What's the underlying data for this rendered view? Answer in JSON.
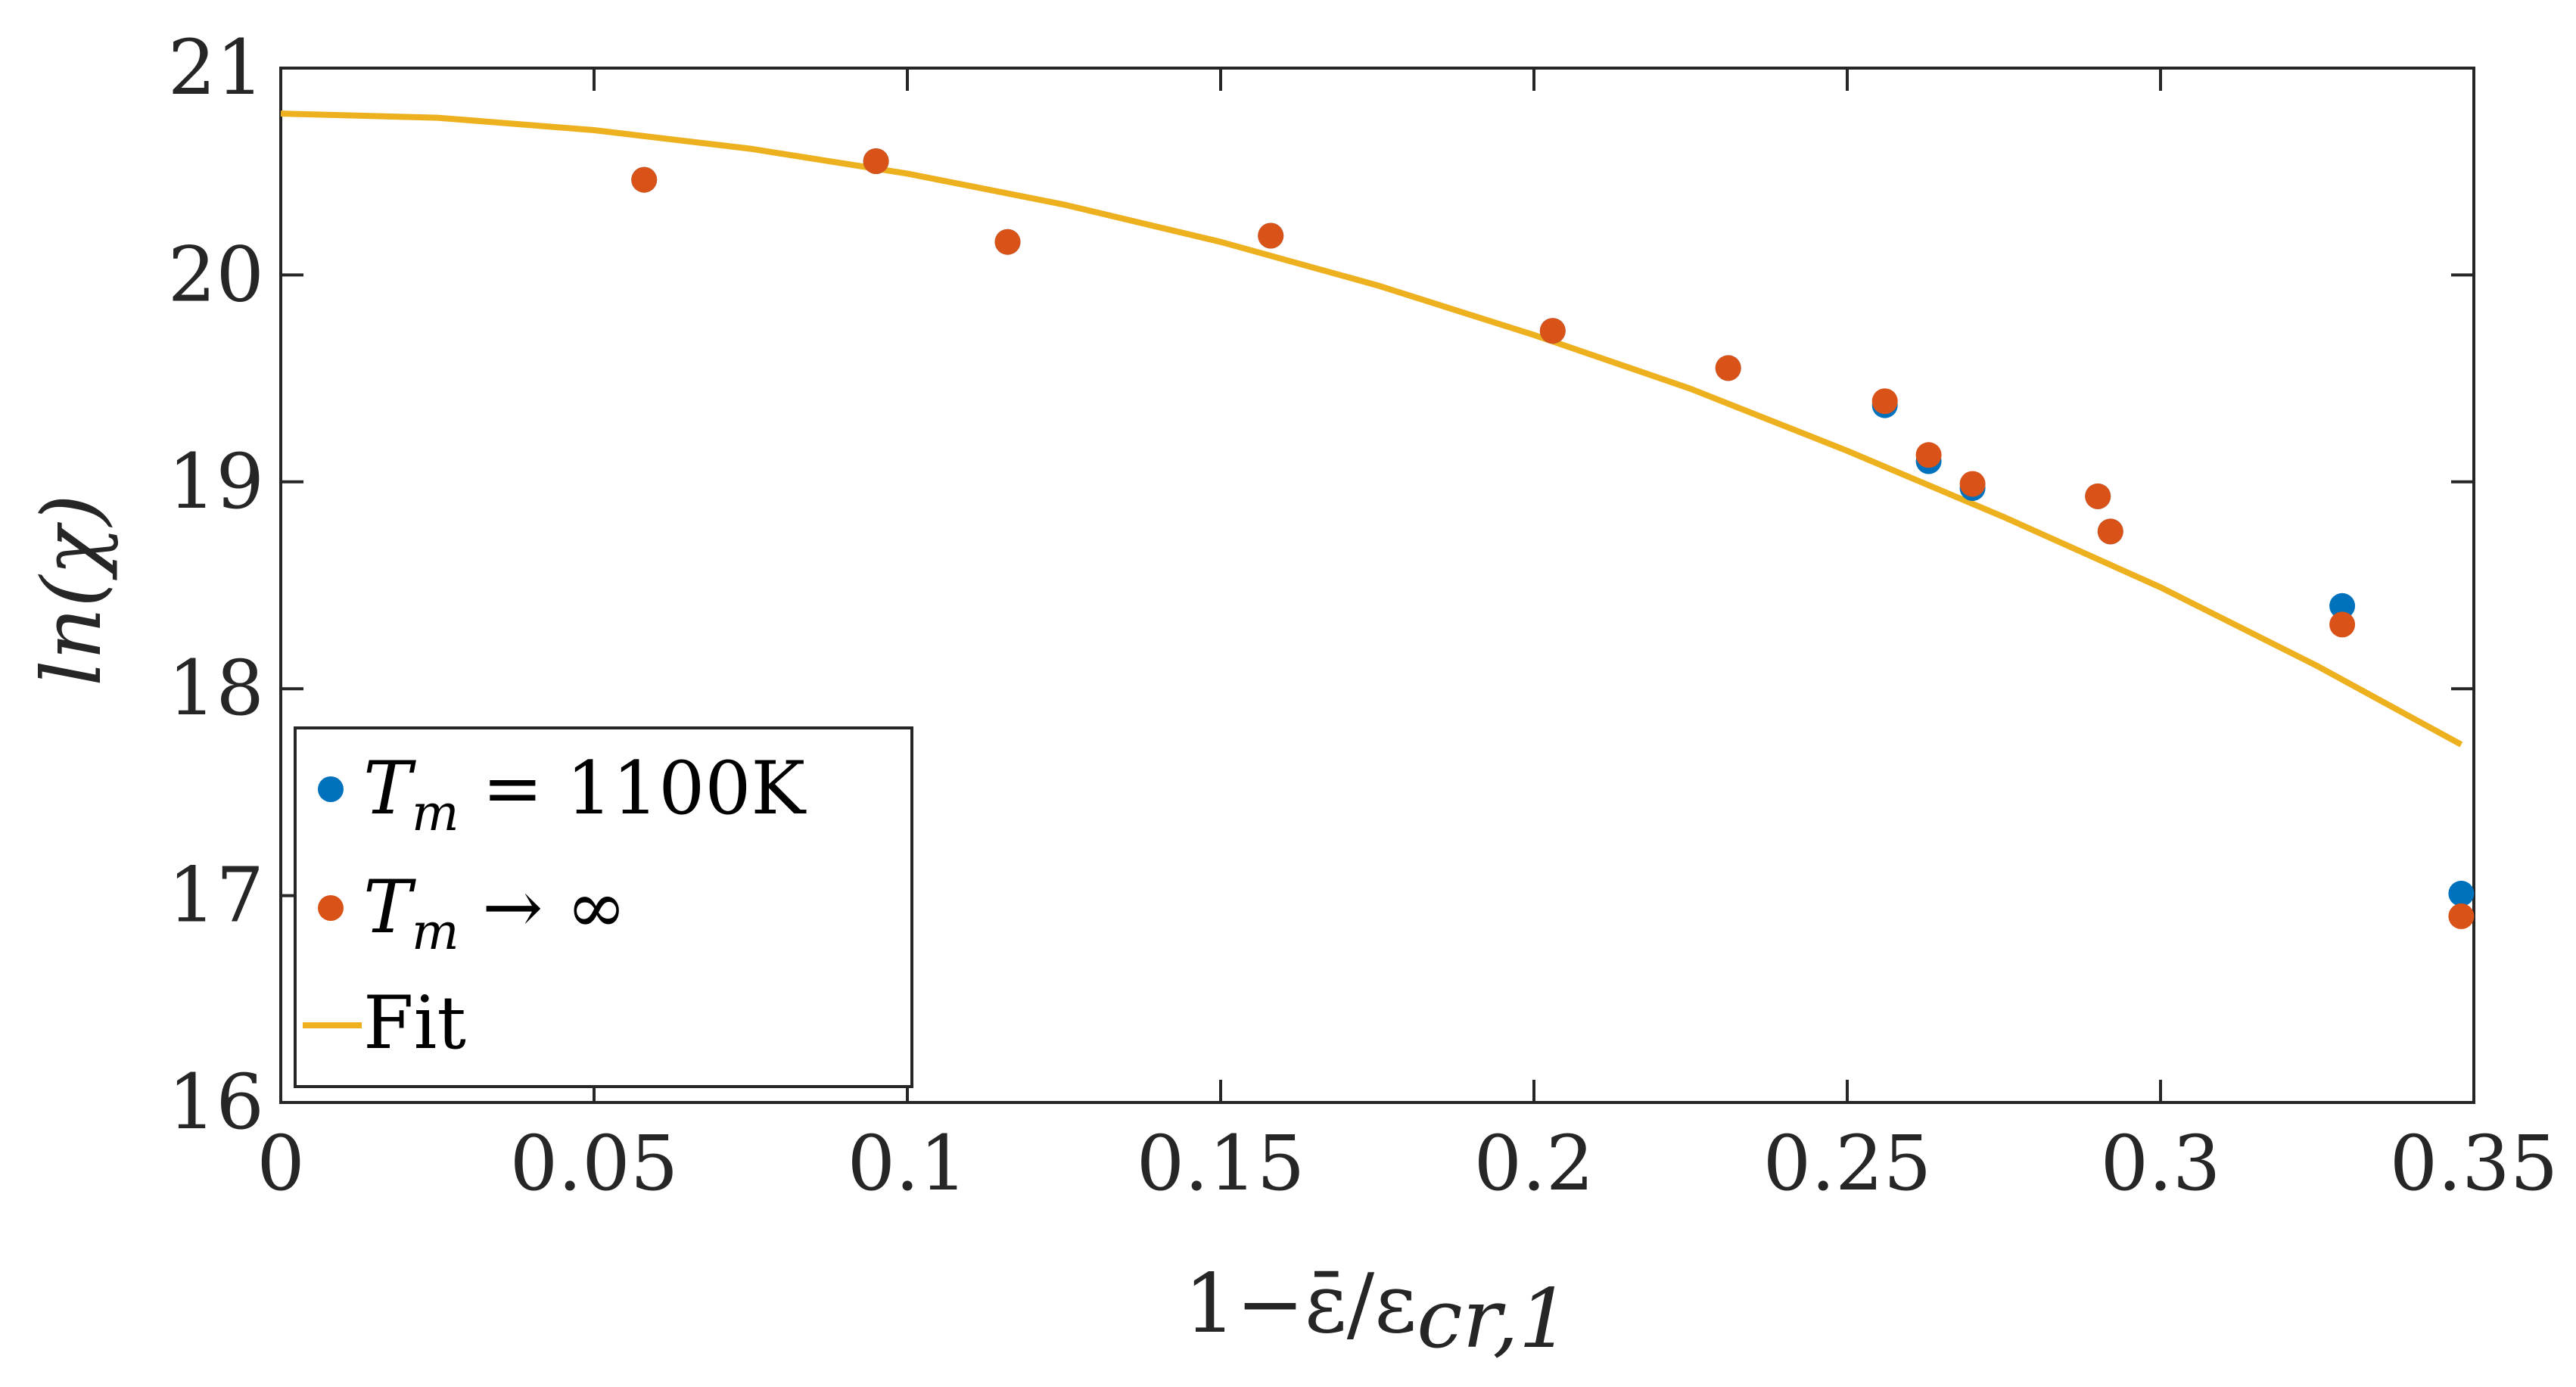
{
  "chart_data": {
    "type": "scatter",
    "title": "",
    "xlabel": "1−ε̄/εcr,1",
    "xlabel_parts": {
      "main": "1−ε̄/ε",
      "sub": "cr,1"
    },
    "ylabel": "ln(χ)",
    "xlim": [
      0,
      0.35
    ],
    "ylim": [
      16,
      21
    ],
    "xticks": [
      0,
      0.05,
      0.1,
      0.15,
      0.2,
      0.25,
      0.3,
      0.35
    ],
    "xtick_labels": [
      "0",
      "0.05",
      "0.1",
      "0.15",
      "0.2",
      "0.25",
      "0.3",
      "0.35"
    ],
    "yticks": [
      16,
      17,
      18,
      19,
      20,
      21
    ],
    "ytick_labels": [
      "16",
      "17",
      "18",
      "19",
      "20",
      "21"
    ],
    "grid": false,
    "legend_position": "bottom-left",
    "series": [
      {
        "name": "Tm = 1100K",
        "label_parts": {
          "main": "T",
          "sub": "m",
          "rest": " = 1100K"
        },
        "color": "#0072BD",
        "marker": "circle",
        "points": [
          [
            0.058,
            20.46
          ],
          [
            0.095,
            20.55
          ],
          [
            0.116,
            20.16
          ],
          [
            0.158,
            20.19
          ],
          [
            0.203,
            19.73
          ],
          [
            0.231,
            19.55
          ],
          [
            0.256,
            19.37
          ],
          [
            0.263,
            19.1
          ],
          [
            0.27,
            18.97
          ],
          [
            0.29,
            18.93
          ],
          [
            0.292,
            18.76
          ],
          [
            0.329,
            18.4
          ],
          [
            0.348,
            17.01
          ]
        ]
      },
      {
        "name": "Tm → ∞",
        "label_parts": {
          "main": "T",
          "sub": "m",
          "rest": " → ∞"
        },
        "color": "#D95319",
        "marker": "circle",
        "points": [
          [
            0.058,
            20.46
          ],
          [
            0.095,
            20.55
          ],
          [
            0.116,
            20.16
          ],
          [
            0.158,
            20.19
          ],
          [
            0.203,
            19.73
          ],
          [
            0.231,
            19.55
          ],
          [
            0.256,
            19.39
          ],
          [
            0.263,
            19.13
          ],
          [
            0.27,
            18.99
          ],
          [
            0.29,
            18.93
          ],
          [
            0.292,
            18.76
          ],
          [
            0.329,
            18.31
          ],
          [
            0.348,
            16.9
          ]
        ]
      },
      {
        "name": "Fit",
        "color": "#EDB120",
        "marker": "line",
        "points": [
          [
            0.0,
            20.78
          ],
          [
            0.025,
            20.76
          ],
          [
            0.05,
            20.7
          ],
          [
            0.075,
            20.61
          ],
          [
            0.1,
            20.49
          ],
          [
            0.125,
            20.34
          ],
          [
            0.15,
            20.16
          ],
          [
            0.175,
            19.95
          ],
          [
            0.2,
            19.71
          ],
          [
            0.225,
            19.45
          ],
          [
            0.25,
            19.15
          ],
          [
            0.275,
            18.83
          ],
          [
            0.3,
            18.49
          ],
          [
            0.325,
            18.11
          ],
          [
            0.348,
            17.73
          ]
        ]
      }
    ]
  }
}
